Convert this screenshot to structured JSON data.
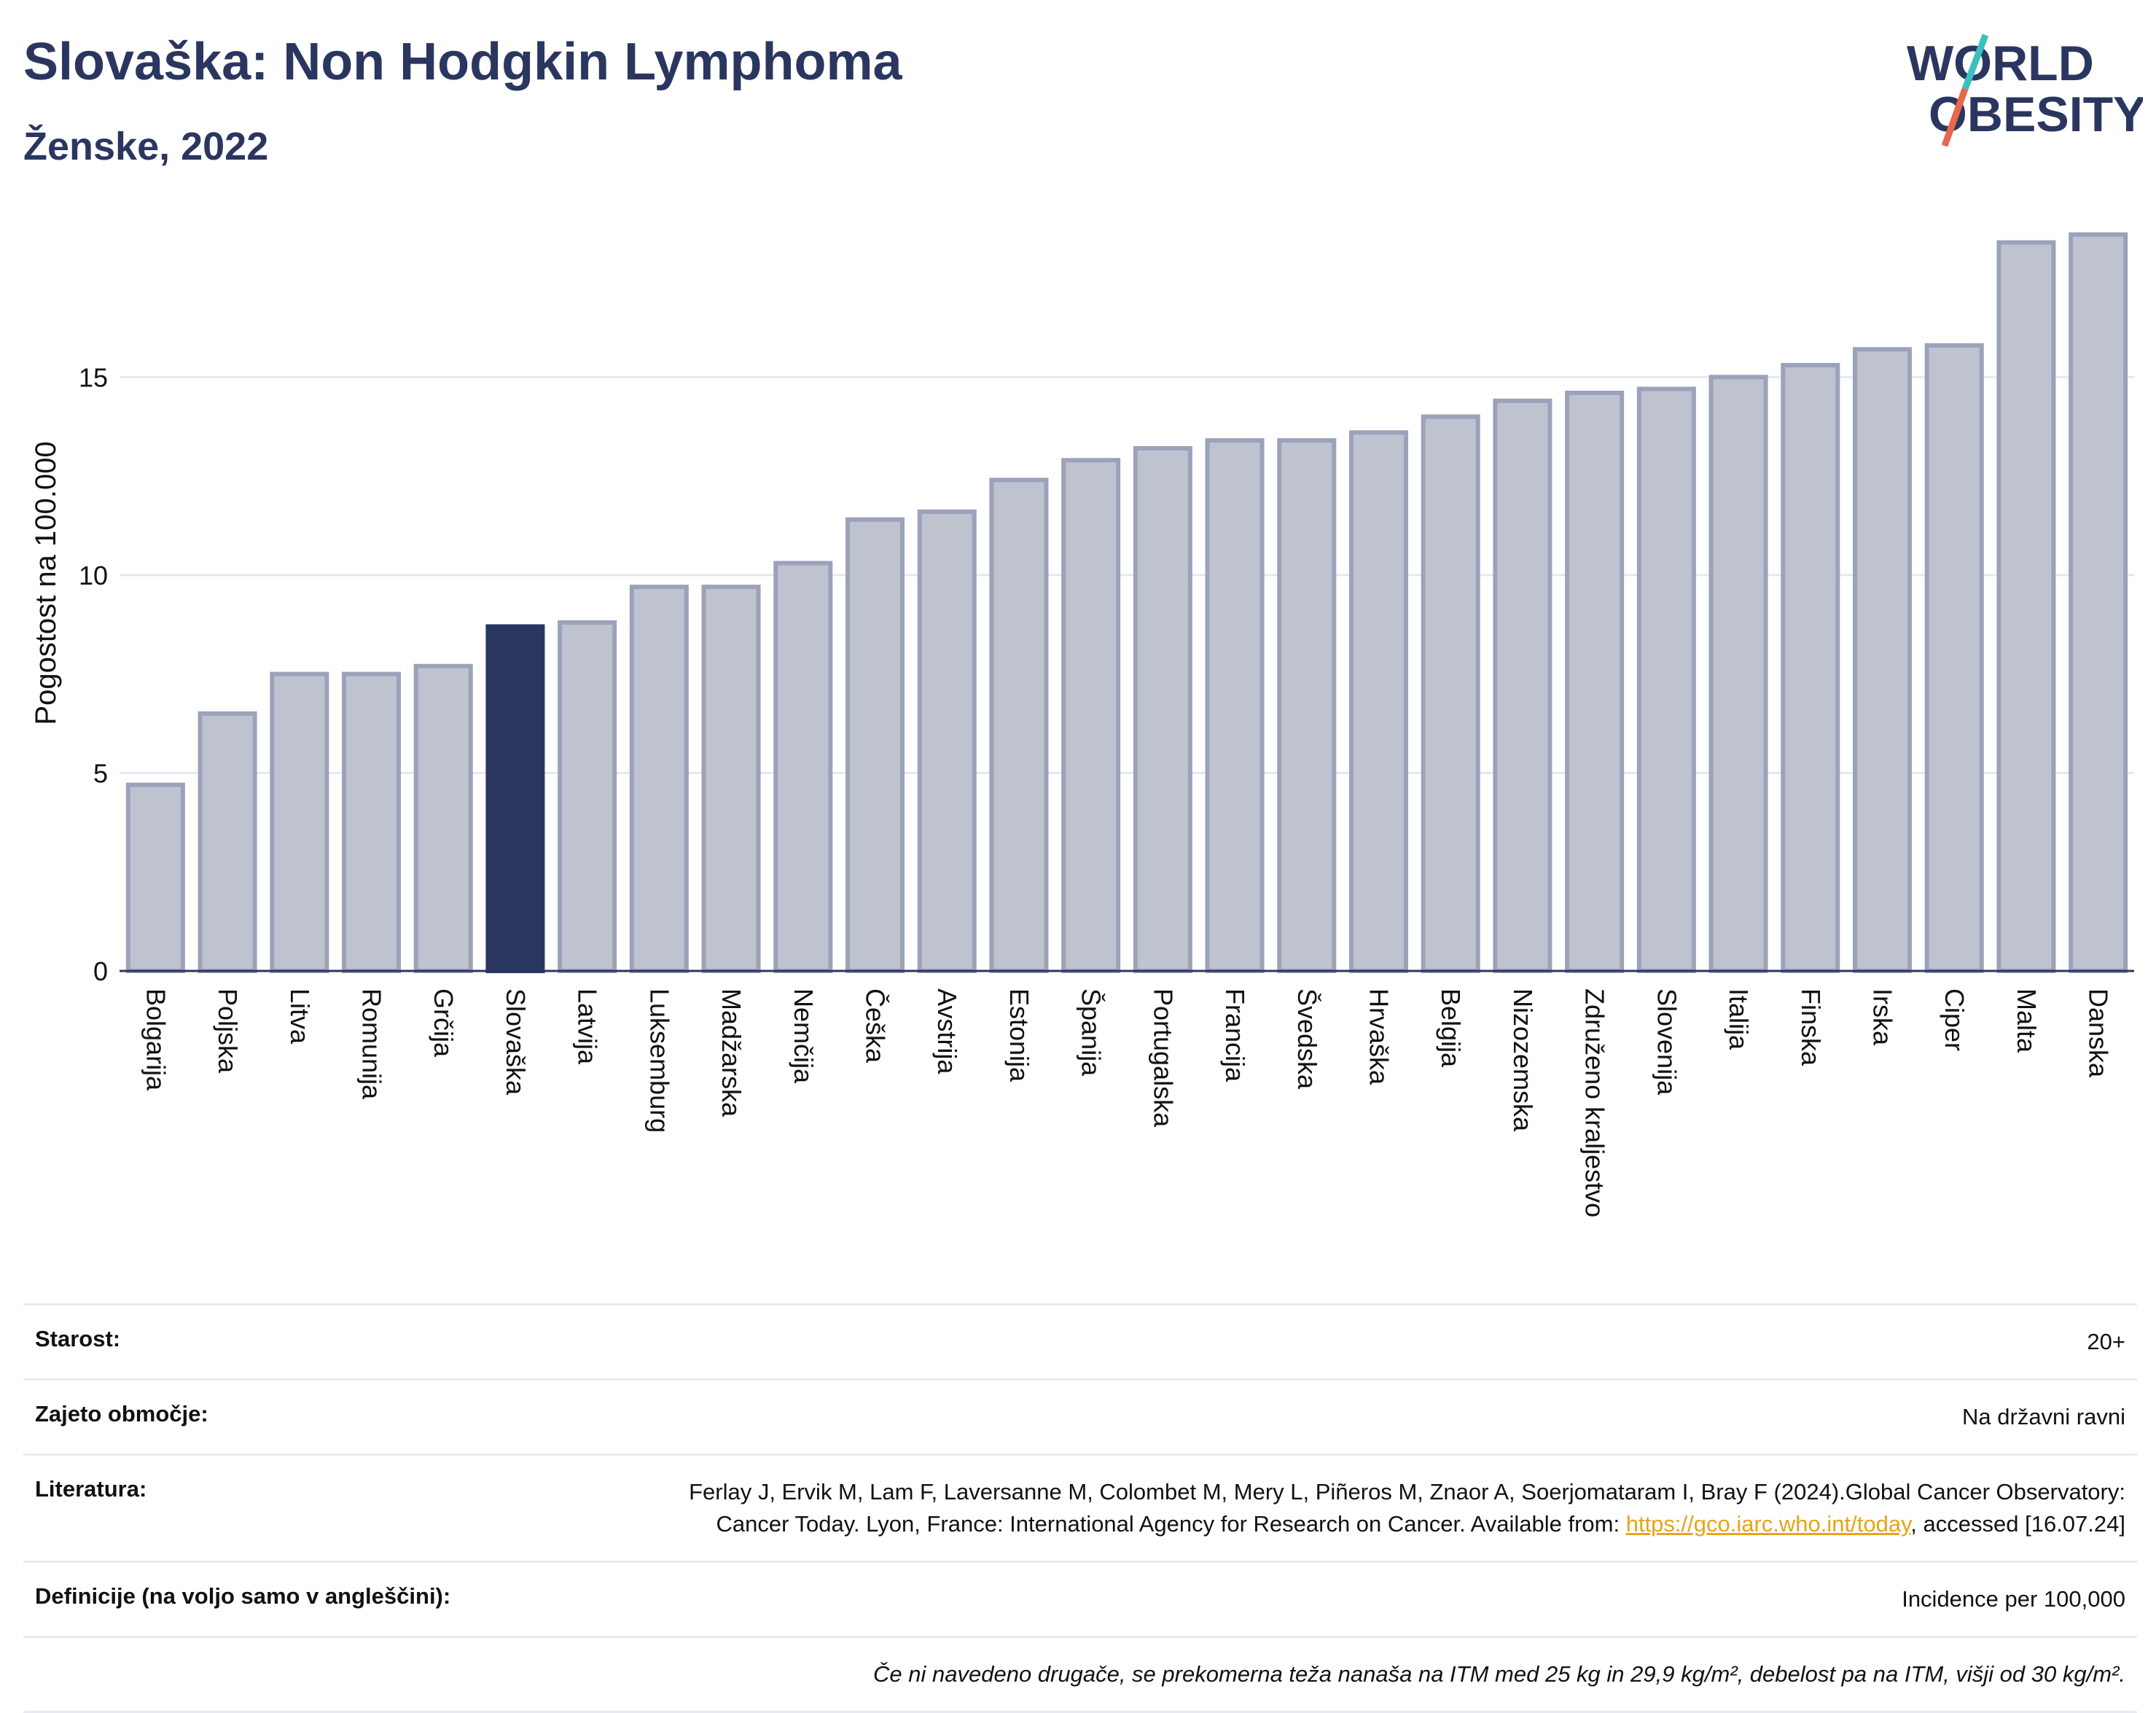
{
  "header": {
    "title": "Slovaška: Non Hodgkin Lymphoma",
    "subtitle": "Ženske, 2022"
  },
  "logo": {
    "line1": "WORLD",
    "line2": "OBESITY",
    "slash_color_top": "#3bbfbf",
    "slash_color_bottom": "#e8674d"
  },
  "chart_data": {
    "type": "bar",
    "ylabel": "Pogostost na 100.000",
    "ylim": [
      0,
      19
    ],
    "yticks": [
      0,
      5,
      10,
      15
    ],
    "grid": true,
    "highlight": "Slovaška",
    "colors": {
      "bar": "#bfc3d0",
      "bar_edge": "#9ba2ba",
      "highlight": "#2b3660"
    },
    "categories": [
      "Bolgarija",
      "Poljska",
      "Litva",
      "Romunija",
      "Grčija",
      "Slovaška",
      "Latvija",
      "Luksemburg",
      "Madžarska",
      "Nemčija",
      "Češka",
      "Avstrija",
      "Estonija",
      "Španija",
      "Portugalska",
      "Francija",
      "Švedska",
      "Hrvaška",
      "Belgija",
      "Nizozemska",
      "Združeno kraljestvo",
      "Slovenija",
      "Italija",
      "Finska",
      "Irska",
      "Ciper",
      "Malta",
      "Danska"
    ],
    "values": [
      4.7,
      6.5,
      7.5,
      7.5,
      7.7,
      8.7,
      8.8,
      9.7,
      9.7,
      10.3,
      11.4,
      11.6,
      12.4,
      12.9,
      13.2,
      13.4,
      13.4,
      13.6,
      14.0,
      14.4,
      14.6,
      14.7,
      15.0,
      15.3,
      15.7,
      15.8,
      18.4,
      18.6
    ]
  },
  "meta": {
    "age_label": "Starost:",
    "age_value": "20+",
    "coverage_label": "Zajeto območje:",
    "coverage_value": "Na državni ravni",
    "lit_label": "Literatura:",
    "lit_text1": "Ferlay J, Ervik M, Lam F, Laversanne M, Colombet M, Mery L, Piñeros M, Znaor A, Soerjomataram I, Bray F (2024).Global Cancer Observatory: Cancer Today. Lyon, France: International Agency for Research on Cancer. Available from: ",
    "lit_link": "https://gco.iarc.who.int/today",
    "lit_text2": ", accessed [16.07.24]",
    "def_label": "Definicije (na voljo samo v angleščini):",
    "def_value": "Incidence per 100,000",
    "note": "Če ni navedeno drugače, se prekomerna teža nanaša na ITM med 25 kg in 29,9 kg/m², debelost pa na ITM, višji od 30 kg/m²."
  }
}
